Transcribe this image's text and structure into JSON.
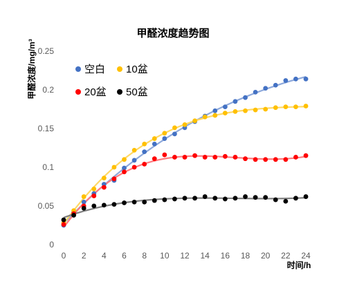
{
  "chart_data": {
    "type": "scatter",
    "title": "甲醛浓度趋势图",
    "xlabel": "时间/h",
    "ylabel": "甲醛浓度/mg/m³",
    "xlim": [
      0,
      24
    ],
    "ylim": [
      0,
      0.25
    ],
    "x_ticks": [
      "0",
      "2",
      "4",
      "6",
      "8",
      "10",
      "12",
      "14",
      "16",
      "18",
      "20",
      "22",
      "24"
    ],
    "y_ticks": [
      "0",
      "0.05",
      "0.1",
      "0.15",
      "0.2",
      "0.25"
    ],
    "grid": false,
    "legend_position": "top-left",
    "trendlines": true,
    "series": [
      {
        "name": "空白",
        "color": "#4472C4",
        "trend_color": "#8FAADC",
        "x": [
          0,
          1,
          2,
          3,
          4,
          5,
          6,
          7,
          8,
          9,
          10,
          11,
          12,
          13,
          14,
          15,
          16,
          17,
          18,
          19,
          20,
          21,
          22,
          23,
          24
        ],
        "y": [
          0.025,
          0.042,
          0.055,
          0.066,
          0.078,
          0.083,
          0.099,
          0.109,
          0.12,
          0.13,
          0.137,
          0.143,
          0.151,
          0.159,
          0.166,
          0.173,
          0.178,
          0.185,
          0.19,
          0.197,
          0.202,
          0.206,
          0.212,
          0.214,
          0.214
        ]
      },
      {
        "name": "10盆",
        "color": "#FFC000",
        "trend_color": "#FFD966",
        "x": [
          0,
          1,
          2,
          3,
          4,
          5,
          6,
          7,
          8,
          9,
          10,
          11,
          12,
          13,
          14,
          15,
          16,
          17,
          18,
          19,
          20,
          21,
          22,
          23,
          24
        ],
        "y": [
          0.028,
          0.044,
          0.062,
          0.072,
          0.086,
          0.1,
          0.11,
          0.122,
          0.13,
          0.137,
          0.144,
          0.151,
          0.155,
          0.16,
          0.165,
          0.167,
          0.17,
          0.172,
          0.173,
          0.174,
          0.175,
          0.177,
          0.178,
          0.178,
          0.179
        ]
      },
      {
        "name": "20盆",
        "color": "#FF0000",
        "trend_color": "#FF7C80",
        "x": [
          0,
          1,
          2,
          3,
          4,
          5,
          6,
          7,
          8,
          9,
          10,
          11,
          12,
          13,
          14,
          15,
          16,
          17,
          18,
          19,
          20,
          21,
          22,
          23,
          24
        ],
        "y": [
          0.026,
          0.04,
          0.05,
          0.063,
          0.074,
          0.085,
          0.094,
          0.1,
          0.104,
          0.111,
          0.116,
          0.113,
          0.113,
          0.115,
          0.113,
          0.113,
          0.114,
          0.113,
          0.111,
          0.11,
          0.11,
          0.11,
          0.11,
          0.113,
          0.115
        ]
      },
      {
        "name": "50盆",
        "color": "#000000",
        "trend_color": "#808080",
        "x": [
          0,
          1,
          2,
          3,
          4,
          5,
          6,
          7,
          8,
          9,
          10,
          11,
          12,
          13,
          14,
          15,
          16,
          17,
          18,
          19,
          20,
          21,
          22,
          23,
          24
        ],
        "y": [
          0.032,
          0.038,
          0.047,
          0.05,
          0.051,
          0.052,
          0.054,
          0.055,
          0.055,
          0.057,
          0.058,
          0.059,
          0.06,
          0.06,
          0.062,
          0.06,
          0.059,
          0.06,
          0.062,
          0.061,
          0.061,
          0.058,
          0.056,
          0.06,
          0.062
        ]
      }
    ]
  }
}
